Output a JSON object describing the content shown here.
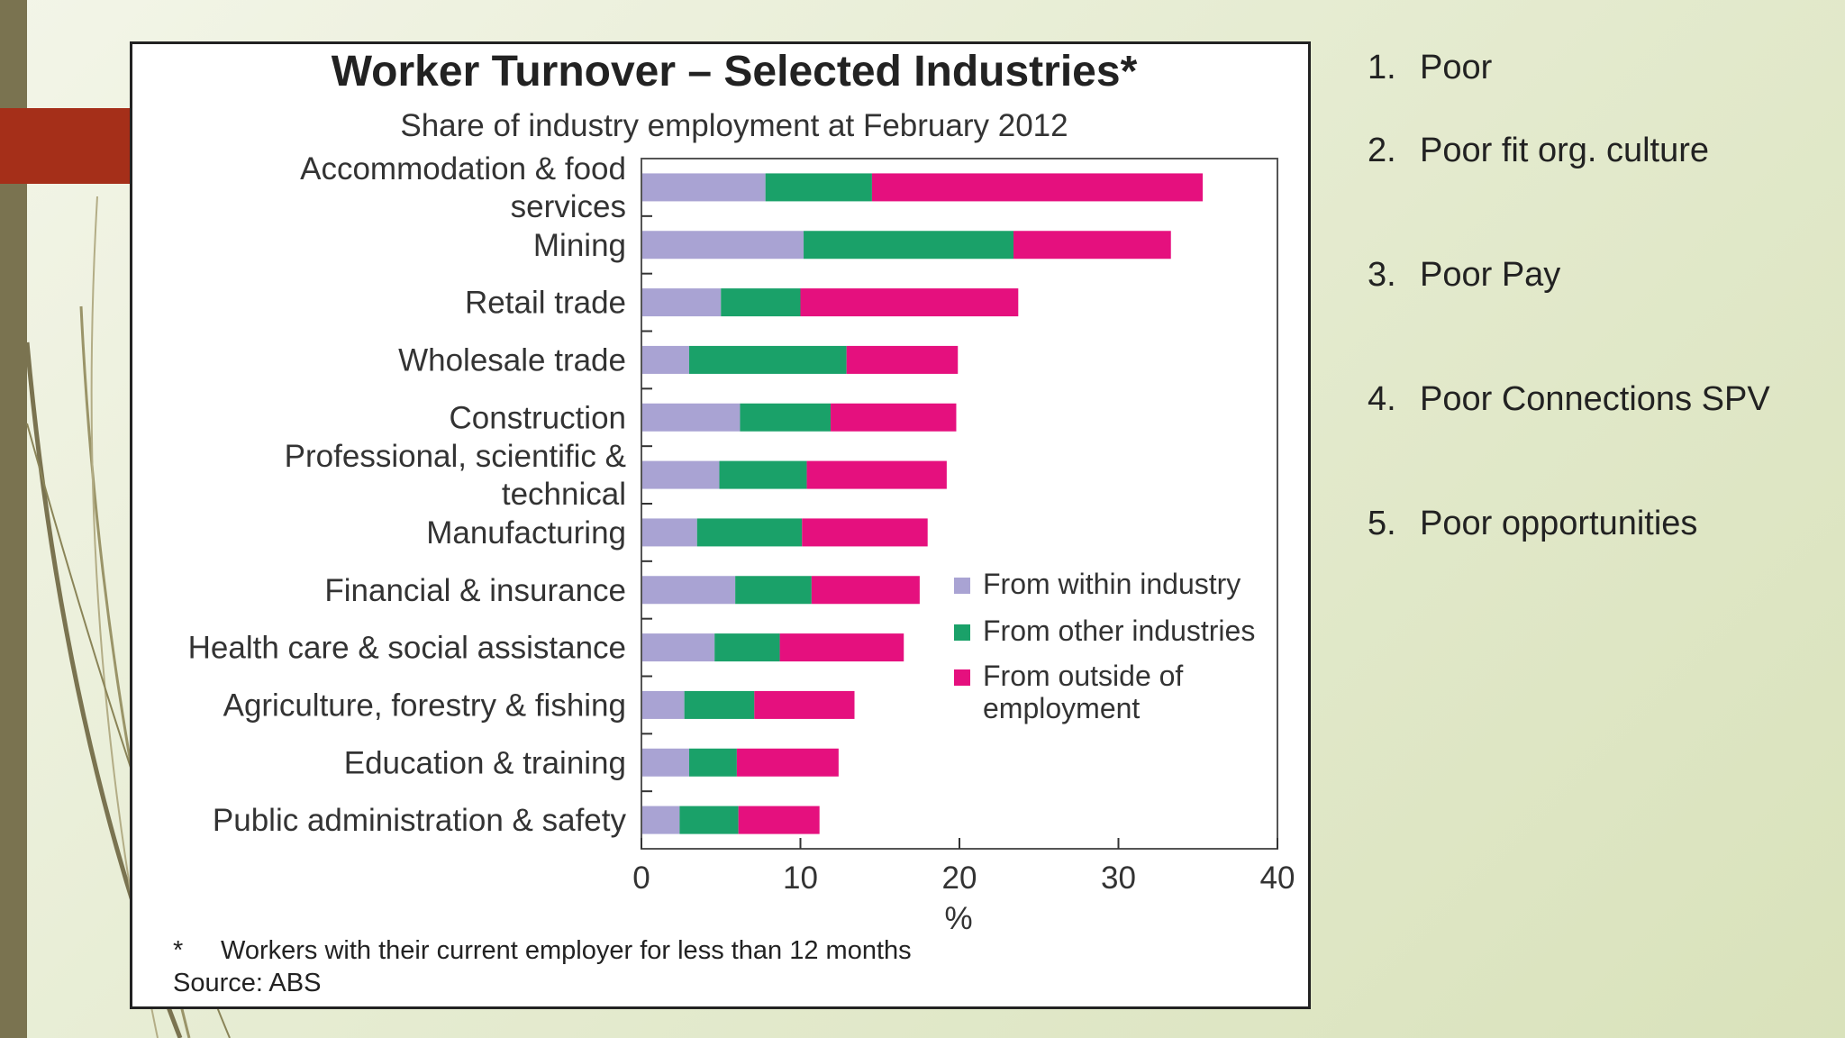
{
  "chart_data": {
    "type": "bar",
    "stacked": true,
    "orientation": "horizontal",
    "title": "Worker Turnover – Selected Industries*",
    "subtitle": "Share of industry employment at February 2012",
    "xlabel": "%",
    "xlim": [
      0,
      40
    ],
    "xticks": [
      "0",
      "10",
      "20",
      "30",
      "40"
    ],
    "grid": false,
    "legend_position": "right",
    "categories": [
      [
        "Accommodation & food",
        "services"
      ],
      [
        "Mining"
      ],
      [
        "Retail trade"
      ],
      [
        "Wholesale trade"
      ],
      [
        "Construction"
      ],
      [
        "Professional, scientific &",
        "technical"
      ],
      [
        "Manufacturing"
      ],
      [
        "Financial & insurance"
      ],
      [
        "Health care & social assistance"
      ],
      [
        "Agriculture, forestry & fishing"
      ],
      [
        "Education & training"
      ],
      [
        "Public administration & safety"
      ]
    ],
    "series": [
      {
        "name": "From within industry",
        "color": "#a9a3d3",
        "values": [
          7.8,
          10.2,
          5.0,
          3.0,
          6.2,
          4.9,
          3.5,
          5.9,
          4.6,
          2.7,
          3.0,
          2.4
        ]
      },
      {
        "name": "From other industries",
        "color": "#1aa169",
        "values": [
          6.7,
          13.2,
          5.0,
          9.9,
          5.7,
          5.5,
          6.6,
          4.8,
          4.1,
          4.4,
          3.0,
          3.7
        ]
      },
      {
        "name": "From outside of employment",
        "color": "#e5107e",
        "values": [
          20.8,
          9.9,
          13.7,
          7.0,
          7.9,
          8.8,
          7.9,
          6.8,
          7.8,
          6.3,
          6.4,
          5.1
        ]
      }
    ],
    "legend_labels": [
      [
        "From within industry"
      ],
      [
        "From other industries"
      ],
      [
        "From outside of",
        "employment"
      ]
    ],
    "note": "Workers with their current employer for less than 12 months",
    "note_marker": "*",
    "source": "Source: ABS"
  },
  "side_list": [
    {
      "num": "1.",
      "text": "Poor"
    },
    {
      "num": "2.",
      "text": "Poor fit org. culture"
    },
    {
      "num": "3.",
      "text": "Poor Pay"
    },
    {
      "num": "4.",
      "text": "Poor Connections SPV"
    },
    {
      "num": "5.",
      "text": "Poor opportunities"
    }
  ],
  "colors": {
    "background": "#e8edd6",
    "left_strip": "#7a7350",
    "accent_tab": "#a52f19"
  }
}
